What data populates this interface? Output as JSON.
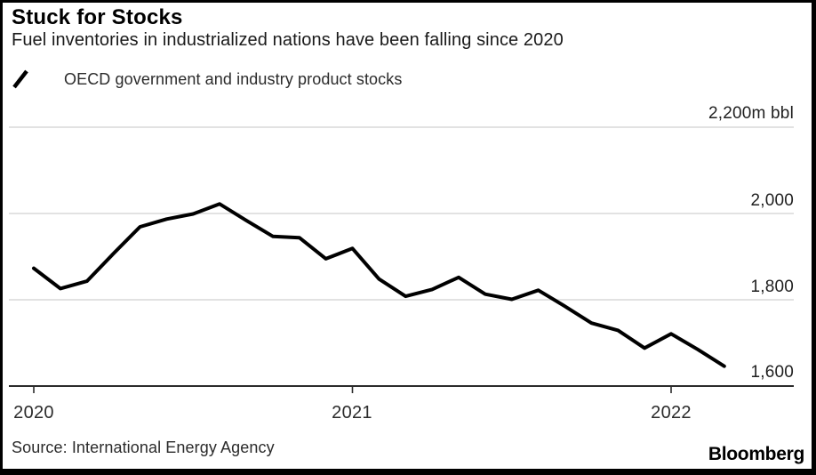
{
  "header": {
    "title": "Stuck for Stocks",
    "subtitle": "Fuel inventories in industrialized nations have been falling since 2020"
  },
  "legend": {
    "marker_icon": "diagonal-line-icon",
    "label": "OECD government and industry product stocks"
  },
  "chart_data": {
    "type": "line",
    "title": "Stuck for Stocks",
    "subtitle": "Fuel inventories in industrialized nations have been falling since 2020",
    "unit": "m bbl",
    "ylim": [
      1600,
      2200
    ],
    "grid": "horizontal",
    "legend_position": "top-left",
    "x": [
      "2020-01",
      "2020-02",
      "2020-03",
      "2020-04",
      "2020-05",
      "2020-06",
      "2020-07",
      "2020-08",
      "2020-09",
      "2020-10",
      "2020-11",
      "2020-12",
      "2021-01",
      "2021-02",
      "2021-03",
      "2021-04",
      "2021-05",
      "2021-06",
      "2021-07",
      "2021-08",
      "2021-09",
      "2021-10",
      "2021-11",
      "2021-12",
      "2022-01",
      "2022-02",
      "2022-03"
    ],
    "series": [
      {
        "name": "OECD government and industry product stocks",
        "color": "#000000",
        "values": [
          1873,
          1826,
          1843,
          1907,
          1969,
          1987,
          1999,
          2022,
          1984,
          1947,
          1944,
          1895,
          1919,
          1848,
          1808,
          1824,
          1852,
          1813,
          1801,
          1822,
          1785,
          1746,
          1729,
          1688,
          1721,
          1685,
          1646
        ]
      }
    ],
    "y_ticks": [
      {
        "value": 2200,
        "label": "2,200m bbl"
      },
      {
        "value": 2000,
        "label": "2,000"
      },
      {
        "value": 1800,
        "label": "1,800"
      },
      {
        "value": 1600,
        "label": "1,600"
      }
    ],
    "x_ticks": [
      {
        "value": "2020",
        "label": "2020"
      },
      {
        "value": "2021",
        "label": "2021"
      },
      {
        "value": "2022",
        "label": "2022"
      }
    ]
  },
  "footer": {
    "source": "Source: International Energy Agency",
    "branding": "Bloomberg"
  }
}
